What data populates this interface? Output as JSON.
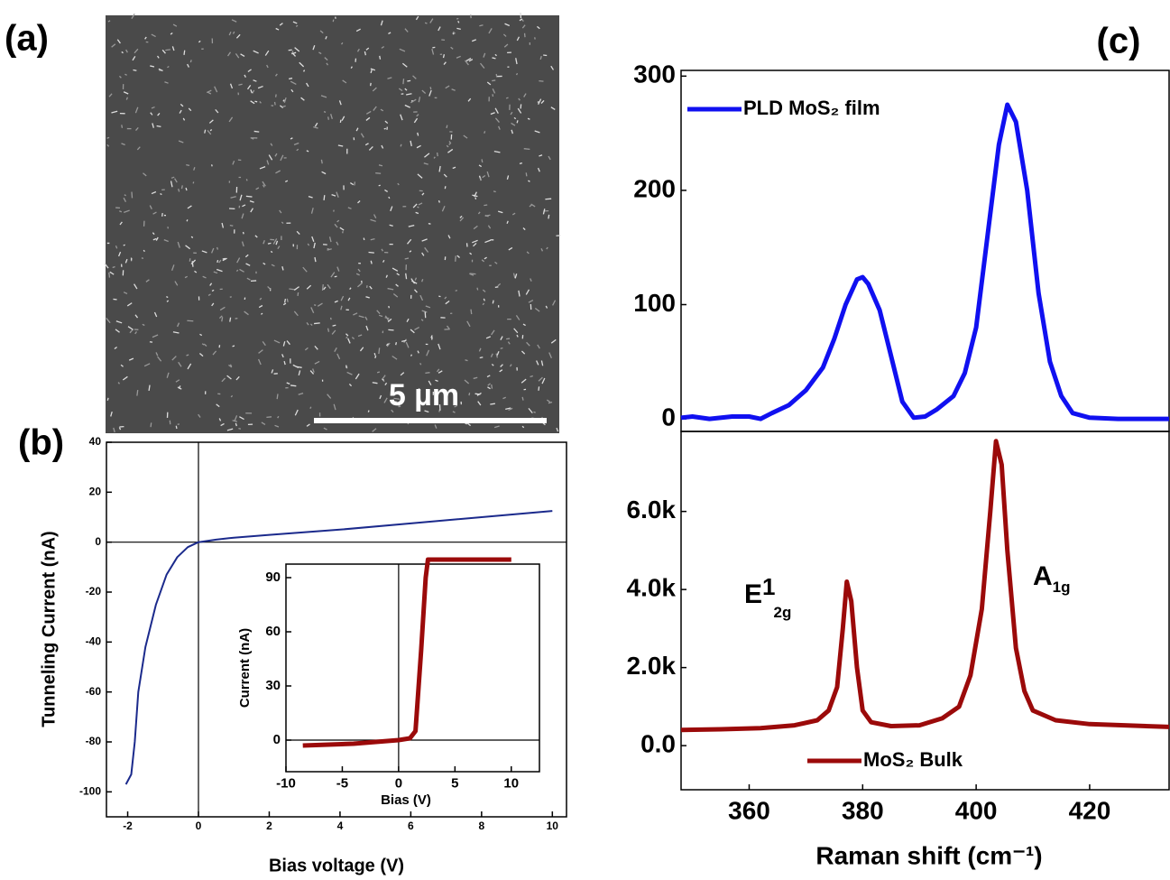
{
  "panel_a": {
    "label": "(a)",
    "scale_bar_label": "5 µm"
  },
  "chart_data": [
    {
      "type": "line",
      "panel_label": "(b)",
      "x_label": "Bias voltage (V)",
      "y_label": "Tunneling Current (nA)",
      "x": [
        -2.05,
        -1.9,
        -1.8,
        -1.7,
        -1.5,
        -1.2,
        -0.9,
        -0.6,
        -0.3,
        0,
        0.5,
        1,
        2,
        4,
        6,
        8,
        10
      ],
      "series": [
        {
          "color": "#1b2a8c",
          "values": [
            -97,
            -93,
            -80,
            -60,
            -42,
            -25,
            -13,
            -6,
            -2,
            0,
            1,
            1.8,
            2.9,
            5,
            7.5,
            10,
            12.5
          ]
        }
      ],
      "xlim": [
        -2.6,
        10.4
      ],
      "ylim": [
        -110,
        40
      ],
      "xticks": [
        -2,
        0,
        2,
        4,
        6,
        8,
        10
      ],
      "yticks": [
        -100,
        -80,
        -60,
        -40,
        -20,
        0,
        20,
        40
      ],
      "zero_lines": true
    },
    {
      "type": "line",
      "x_label": "Bias (V)",
      "y_label": "Current (nA)",
      "x": [
        -8.5,
        -4,
        0,
        1,
        1.5,
        2,
        2.4,
        2.6,
        10
      ],
      "series": [
        {
          "color": "#9b0a0a",
          "values": [
            -3,
            -2,
            0,
            1,
            5,
            50,
            90,
            100,
            100
          ]
        }
      ],
      "xlim": [
        -10,
        12.5
      ],
      "ylim": [
        -17.5,
        97.5
      ],
      "xticks": [
        -10,
        -5,
        0,
        5,
        10
      ],
      "yticks": [
        0,
        30,
        60,
        90
      ],
      "zero_lines": true
    },
    {
      "type": "line",
      "panel_label": "(c)",
      "legend": "top-left",
      "x": [
        348,
        350,
        353,
        357,
        360,
        362,
        364,
        367,
        370,
        373,
        375,
        377,
        379,
        380,
        381,
        383,
        385,
        387,
        389,
        391,
        393,
        396,
        398,
        400,
        402,
        404,
        405.5,
        407,
        409,
        411,
        413,
        415,
        417,
        420,
        425,
        434
      ],
      "series": [
        {
          "name": "PLD MoS₂ film",
          "color": "#1010f0",
          "values": [
            1,
            2,
            0,
            2,
            2,
            0,
            5,
            12,
            25,
            45,
            70,
            100,
            122,
            124,
            118,
            95,
            55,
            15,
            1,
            2,
            8,
            20,
            40,
            80,
            160,
            240,
            275,
            260,
            200,
            110,
            50,
            20,
            5,
            1,
            0,
            0
          ]
        }
      ],
      "xlim": [
        348,
        434
      ],
      "ylim": [
        -11,
        305
      ],
      "yticks": [
        0,
        100,
        200,
        300
      ]
    },
    {
      "type": "line",
      "legend": "bottom",
      "x_label": "Raman shift (cm⁻¹)",
      "x": [
        348,
        355,
        362,
        368,
        372,
        374,
        375.5,
        376.5,
        377.2,
        378,
        379,
        380,
        381.5,
        385,
        390,
        394,
        397,
        399,
        401,
        402.5,
        403.5,
        404.5,
        405.5,
        407,
        408.5,
        410,
        414,
        420,
        434
      ],
      "series": [
        {
          "name": "MoS₂ Bulk",
          "color": "#9b0a0a",
          "values": [
            400,
            420,
            450,
            520,
            650,
            900,
            1500,
            3000,
            4200,
            3700,
            2000,
            900,
            600,
            500,
            520,
            700,
            1000,
            1800,
            3500,
            6000,
            7800,
            7200,
            5000,
            2500,
            1400,
            900,
            650,
            550,
            480
          ]
        }
      ],
      "annotations": [
        {
          "text": "E",
          "sup": "1",
          "sub": "2g"
        },
        {
          "text": "A",
          "sub": "1g"
        }
      ],
      "xlim": [
        348,
        434
      ],
      "ylim": [
        -1130,
        8050
      ],
      "xticks": [
        360,
        380,
        400,
        420
      ],
      "yticks": [
        {
          "value": 0,
          "label": "0.0"
        },
        {
          "value": 2000,
          "label": "2.0k"
        },
        {
          "value": 4000,
          "label": "4.0k"
        },
        {
          "value": 6000,
          "label": "6.0k"
        }
      ]
    }
  ]
}
